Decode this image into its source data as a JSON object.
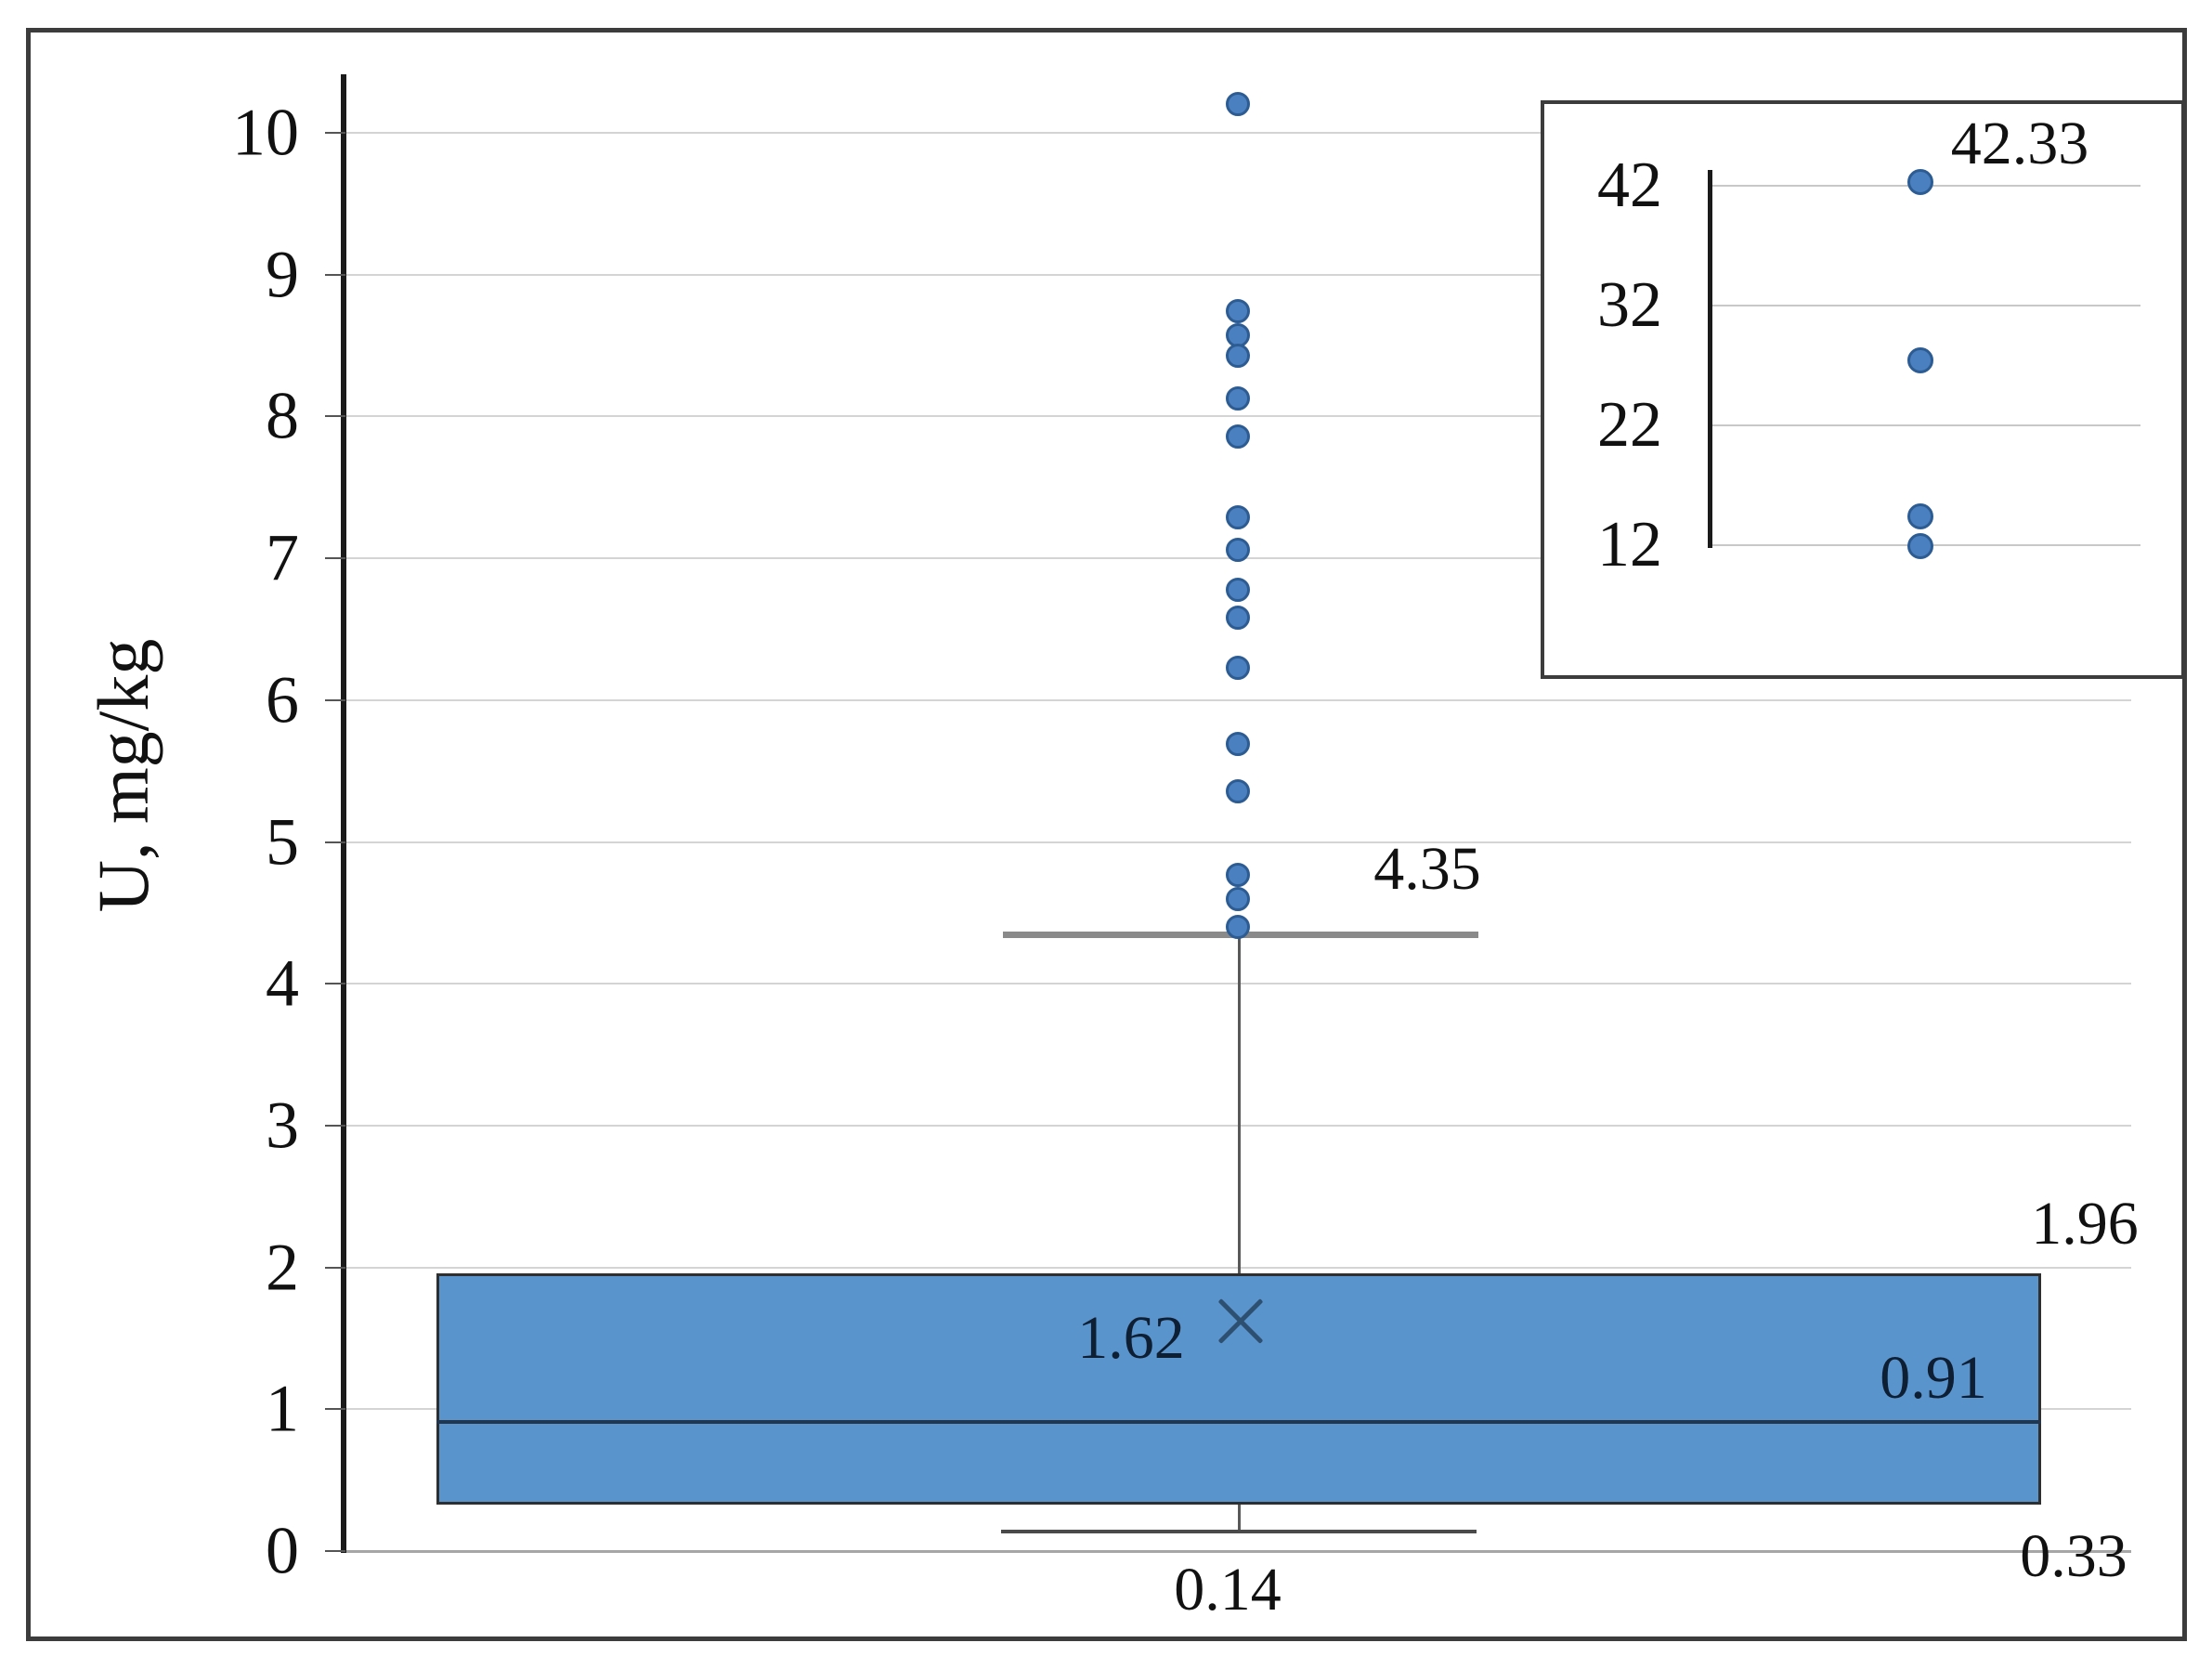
{
  "colors": {
    "dot_fill": "#4a80bf",
    "dot_edge": "#2d5c93",
    "box_fill": "#5a94cd",
    "box_edge": "#2f2f2f",
    "median": "#22364d",
    "mean_marker": "#2d4f70",
    "grid": "#d4d4d4",
    "axis": "#1a1a1a",
    "cap_upper": "#8a8a8a",
    "cap_lower": "#4a4a4a",
    "frame": "#3c3c3c"
  },
  "chart_data": [
    {
      "type": "box",
      "title": "",
      "xlabel": "",
      "ylabel": "U, mg/kg",
      "ylim": [
        0,
        10.3
      ],
      "yticks": [
        0,
        1,
        2,
        3,
        4,
        5,
        6,
        7,
        8,
        9,
        10
      ],
      "grid": true,
      "legend": "none",
      "box": {
        "q1": 0.33,
        "median": 0.91,
        "q3": 1.96,
        "mean": 1.62,
        "whisker_low": 0.14,
        "whisker_high": 4.35
      },
      "outliers": [
        10.2,
        8.74,
        8.57,
        8.43,
        8.13,
        7.86,
        7.29,
        7.06,
        6.78,
        6.58,
        6.23,
        5.69,
        5.36,
        4.77,
        4.6,
        4.4
      ],
      "labels": {
        "whisker_high": "4.35",
        "q3": "1.96",
        "mean": "1.62",
        "median": "0.91",
        "q1": "0.33",
        "whisker_low": "0.14"
      }
    },
    {
      "type": "scatter",
      "title": "",
      "role": "inset-extreme-outliers",
      "ylim": [
        11,
        45
      ],
      "yticks": [
        12,
        22,
        32,
        42
      ],
      "grid": true,
      "points": [
        42.33,
        27.4,
        14.4,
        11.9
      ],
      "max_point_label": "42.33"
    }
  ]
}
